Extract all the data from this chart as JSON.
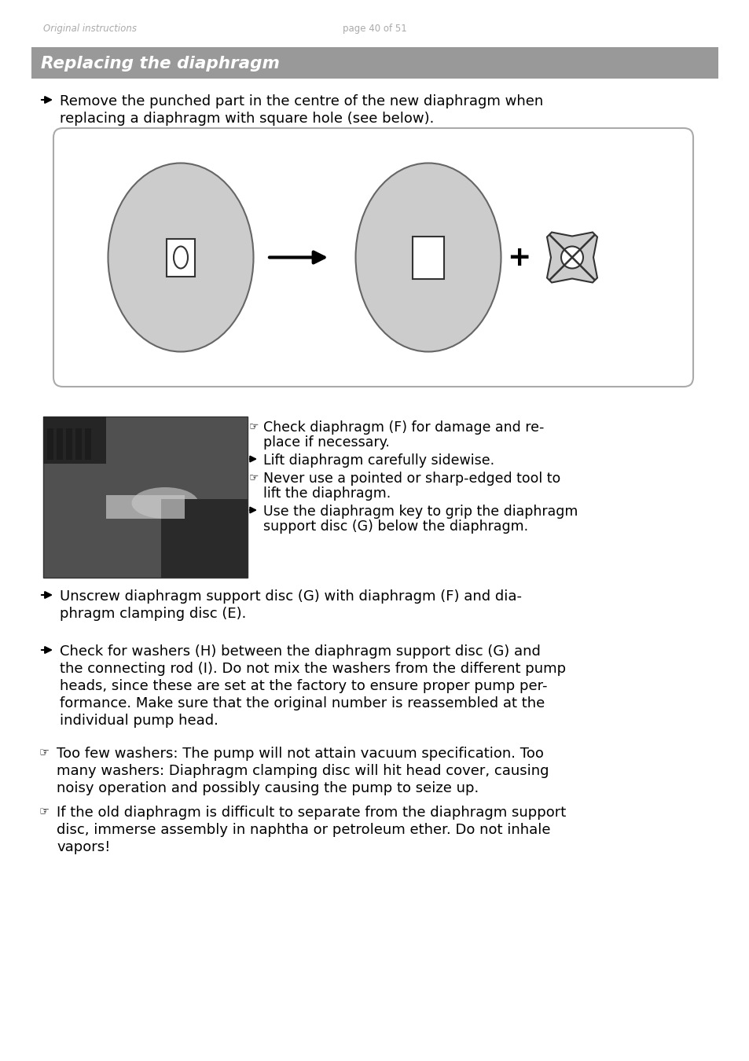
{
  "page_bg": "#ffffff",
  "header_left": "Original instructions",
  "header_center": "page 40 of 51",
  "header_color": "#aaaaaa",
  "section_bg": "#999999",
  "section_title": "Replacing the diaphragm",
  "section_title_color": "#ffffff",
  "body_text_color": "#000000",
  "para1_line1": "Remove the punched part in the centre of the new diaphragm when",
  "para1_line2": "replacing a diaphragm with square hole (see below).",
  "diagram_box_bg": "#ffffff",
  "diagram_box_border": "#aaaaaa",
  "ellipse_fill": "#cccccc",
  "ellipse_border": "#666666",
  "bullet_items_right": [
    {
      "type": "note",
      "lines": [
        "Check diaphragm (F) for damage and re-",
        "place if necessary."
      ]
    },
    {
      "type": "arrow",
      "lines": [
        "Lift diaphragm carefully sidewise."
      ]
    },
    {
      "type": "note",
      "lines": [
        "Never use a pointed or sharp-edged tool to",
        "lift the diaphragm."
      ]
    },
    {
      "type": "arrow",
      "lines": [
        "Use the diaphragm key to grip the diaphragm",
        "support disc (G) below the diaphragm."
      ]
    }
  ],
  "para2_line1": "Unscrew diaphragm support disc (G) with diaphragm (F) and dia-",
  "para2_line2": "phragm clamping disc (E).",
  "para3_lines": [
    "Check for washers (H) between the diaphragm support disc (G) and",
    "the connecting rod (I). Do not mix the washers from the different pump",
    "heads, since these are set at the factory to ensure proper pump per-",
    "formance. Make sure that the original number is reassembled at the",
    "individual pump head."
  ],
  "note1_lines": [
    "Too few washers: The pump will not attain vacuum specification. Too",
    "many washers: Diaphragm clamping disc will hit head cover, causing",
    "noisy operation and possibly causing the pump to seize up."
  ],
  "note2_lines": [
    "If the old diaphragm is difficult to separate from the diaphragm support",
    "disc, immerse assembly in naphtha or petroleum ether. Do not inhale",
    "vapors!"
  ]
}
